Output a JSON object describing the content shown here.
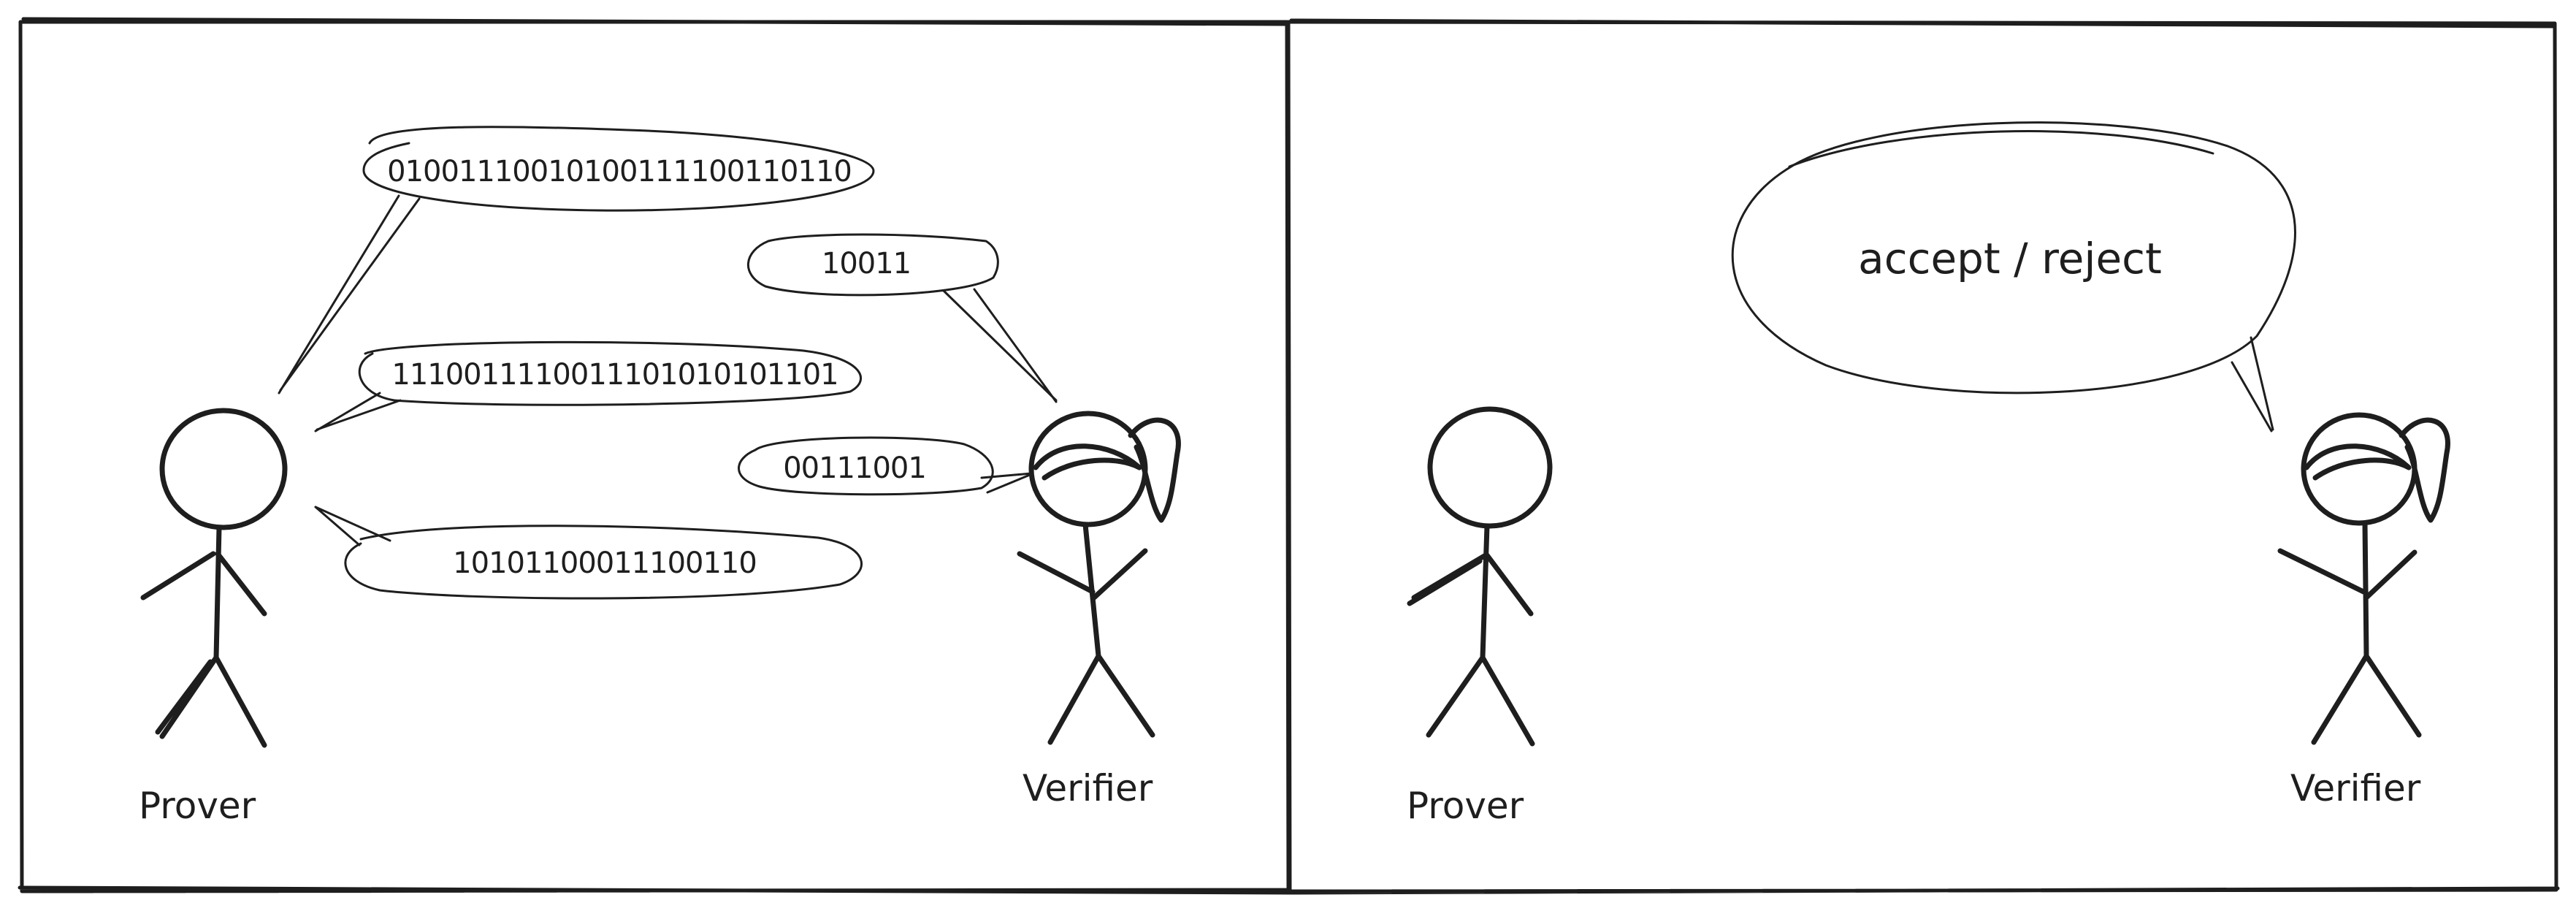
{
  "left_panel": {
    "prover_label": "Prover",
    "verifier_label": "Verifier",
    "messages": [
      {
        "from": "prover",
        "text": "01001110010100111100110110"
      },
      {
        "from": "verifier",
        "text": "10011"
      },
      {
        "from": "prover",
        "text": "1110011110011101010101101"
      },
      {
        "from": "verifier",
        "text": "00111001"
      },
      {
        "from": "prover",
        "text": "10101100011100110"
      }
    ]
  },
  "right_panel": {
    "prover_label": "Prover",
    "verifier_label": "Verifier",
    "verdict": "accept / reject"
  },
  "colors": {
    "ink": "#1e1e1e",
    "background": "#ffffff"
  }
}
